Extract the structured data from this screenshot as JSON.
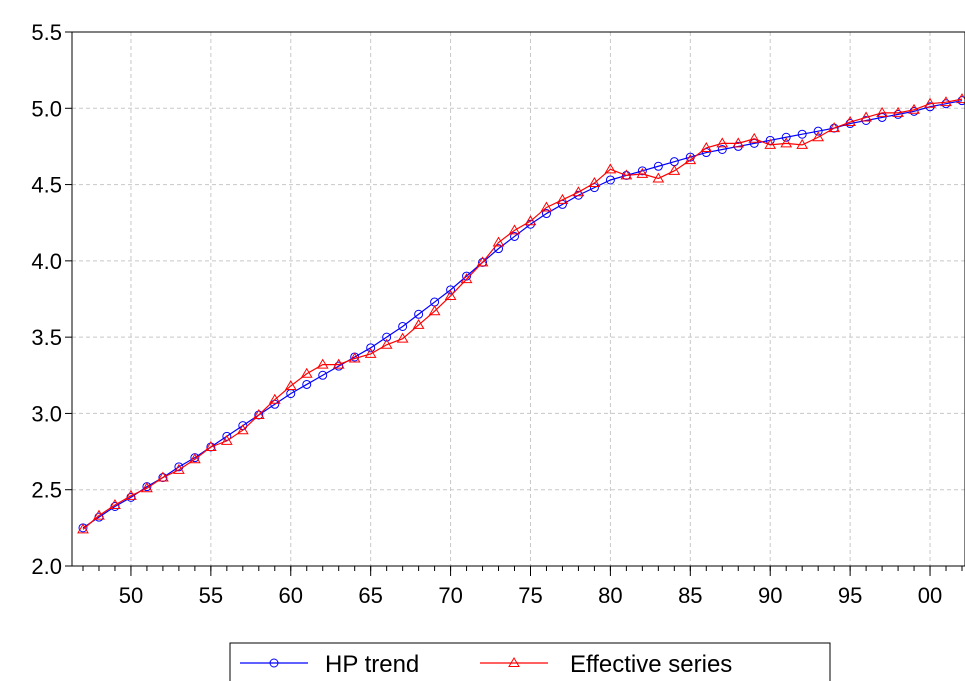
{
  "chart_data": {
    "type": "line",
    "title": "",
    "xlabel": "",
    "ylabel": "",
    "xlim": [
      1947,
      2002
    ],
    "ylim": [
      2.0,
      5.5
    ],
    "grid": true,
    "legend_position": "bottom-center",
    "y_ticks": [
      "2.0",
      "2.5",
      "3.0",
      "3.5",
      "4.0",
      "4.5",
      "5.0",
      "5.5"
    ],
    "x_ticks": [
      {
        "year": 1950,
        "label": "50"
      },
      {
        "year": 1955,
        "label": "55"
      },
      {
        "year": 1960,
        "label": "60"
      },
      {
        "year": 1965,
        "label": "65"
      },
      {
        "year": 1970,
        "label": "70"
      },
      {
        "year": 1975,
        "label": "75"
      },
      {
        "year": 1980,
        "label": "80"
      },
      {
        "year": 1985,
        "label": "85"
      },
      {
        "year": 1990,
        "label": "90"
      },
      {
        "year": 1995,
        "label": "95"
      },
      {
        "year": 2000,
        "label": "00"
      }
    ],
    "x": [
      1947,
      1948,
      1949,
      1950,
      1951,
      1952,
      1953,
      1954,
      1955,
      1956,
      1957,
      1958,
      1959,
      1960,
      1961,
      1962,
      1963,
      1964,
      1965,
      1966,
      1967,
      1968,
      1969,
      1970,
      1971,
      1972,
      1973,
      1974,
      1975,
      1976,
      1977,
      1978,
      1979,
      1980,
      1981,
      1982,
      1983,
      1984,
      1985,
      1986,
      1987,
      1988,
      1989,
      1990,
      1991,
      1992,
      1993,
      1994,
      1995,
      1996,
      1997,
      1998,
      1999,
      2000,
      2001,
      2002
    ],
    "series": [
      {
        "name": "HP trend",
        "color": "#0000ff",
        "marker": "circle",
        "values": [
          2.25,
          2.32,
          2.39,
          2.45,
          2.52,
          2.58,
          2.65,
          2.71,
          2.78,
          2.85,
          2.92,
          2.99,
          3.06,
          3.13,
          3.19,
          3.25,
          3.31,
          3.37,
          3.43,
          3.5,
          3.57,
          3.65,
          3.73,
          3.81,
          3.9,
          3.99,
          4.08,
          4.16,
          4.24,
          4.31,
          4.37,
          4.43,
          4.48,
          4.53,
          4.56,
          4.59,
          4.62,
          4.65,
          4.68,
          4.71,
          4.73,
          4.75,
          4.77,
          4.79,
          4.81,
          4.83,
          4.85,
          4.87,
          4.9,
          4.92,
          4.94,
          4.96,
          4.98,
          5.01,
          5.03,
          5.05
        ]
      },
      {
        "name": "Effective series",
        "color": "#ff0000",
        "marker": "triangle",
        "values": [
          2.24,
          2.33,
          2.4,
          2.46,
          2.51,
          2.58,
          2.63,
          2.7,
          2.78,
          2.82,
          2.89,
          2.99,
          3.09,
          3.18,
          3.26,
          3.32,
          3.32,
          3.36,
          3.39,
          3.45,
          3.49,
          3.58,
          3.67,
          3.77,
          3.88,
          3.99,
          4.12,
          4.2,
          4.26,
          4.35,
          4.4,
          4.45,
          4.51,
          4.6,
          4.56,
          4.57,
          4.54,
          4.59,
          4.66,
          4.74,
          4.77,
          4.77,
          4.8,
          4.76,
          4.77,
          4.76,
          4.81,
          4.87,
          4.91,
          4.94,
          4.97,
          4.97,
          4.99,
          5.03,
          5.04,
          5.06
        ]
      }
    ]
  }
}
